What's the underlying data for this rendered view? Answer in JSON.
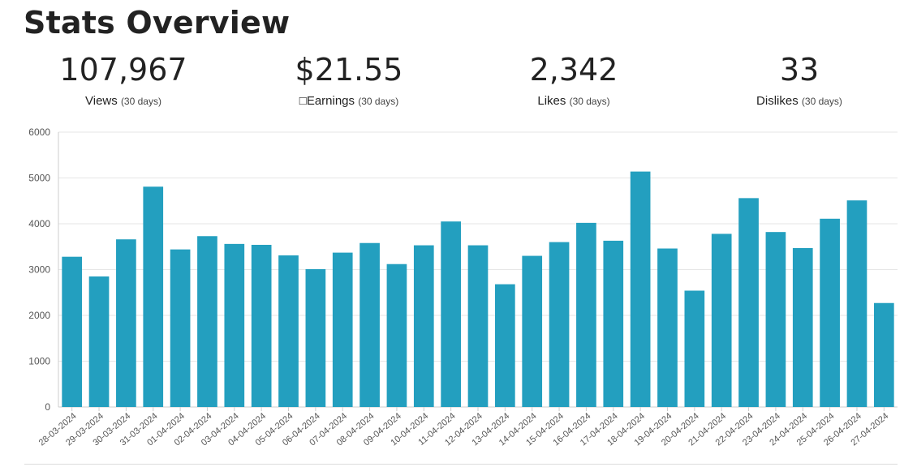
{
  "page": {
    "title": "Stats Overview"
  },
  "stats": [
    {
      "value": "107,967",
      "label": "Views",
      "period": "(30 days)"
    },
    {
      "value": "$21.55",
      "label": "□Earnings",
      "period": "(30 days)"
    },
    {
      "value": "2,342",
      "label": "Likes",
      "period": "(30 days)"
    },
    {
      "value": "33",
      "label": "Dislikes",
      "period": "(30 days)"
    }
  ],
  "colors": {
    "bar": "#239fbf",
    "grid": "#e6e6e6",
    "axis": "#cccccc",
    "tick_text": "#555555"
  },
  "chart_data": {
    "type": "bar",
    "categories": [
      "28-03-2024",
      "29-03-2024",
      "30-03-2024",
      "31-03-2024",
      "01-04-2024",
      "02-04-2024",
      "03-04-2024",
      "04-04-2024",
      "05-04-2024",
      "06-04-2024",
      "07-04-2024",
      "08-04-2024",
      "09-04-2024",
      "10-04-2024",
      "11-04-2024",
      "12-04-2024",
      "13-04-2024",
      "14-04-2024",
      "15-04-2024",
      "16-04-2024",
      "17-04-2024",
      "18-04-2024",
      "19-04-2024",
      "20-04-2024",
      "21-04-2024",
      "22-04-2024",
      "23-04-2024",
      "24-04-2024",
      "25-04-2024",
      "26-04-2024",
      "27-04-2024"
    ],
    "values": [
      3280,
      2850,
      3660,
      4810,
      3440,
      3730,
      3560,
      3540,
      3310,
      3010,
      3370,
      3580,
      3120,
      3530,
      4050,
      3530,
      2680,
      3300,
      3600,
      4020,
      3630,
      5140,
      3460,
      2540,
      3780,
      4560,
      3820,
      3470,
      4110,
      4510,
      2270
    ],
    "yticks": [
      0,
      1000,
      2000,
      3000,
      4000,
      5000,
      6000
    ],
    "ylim": [
      0,
      6000
    ],
    "grid": true,
    "legend": "none"
  }
}
